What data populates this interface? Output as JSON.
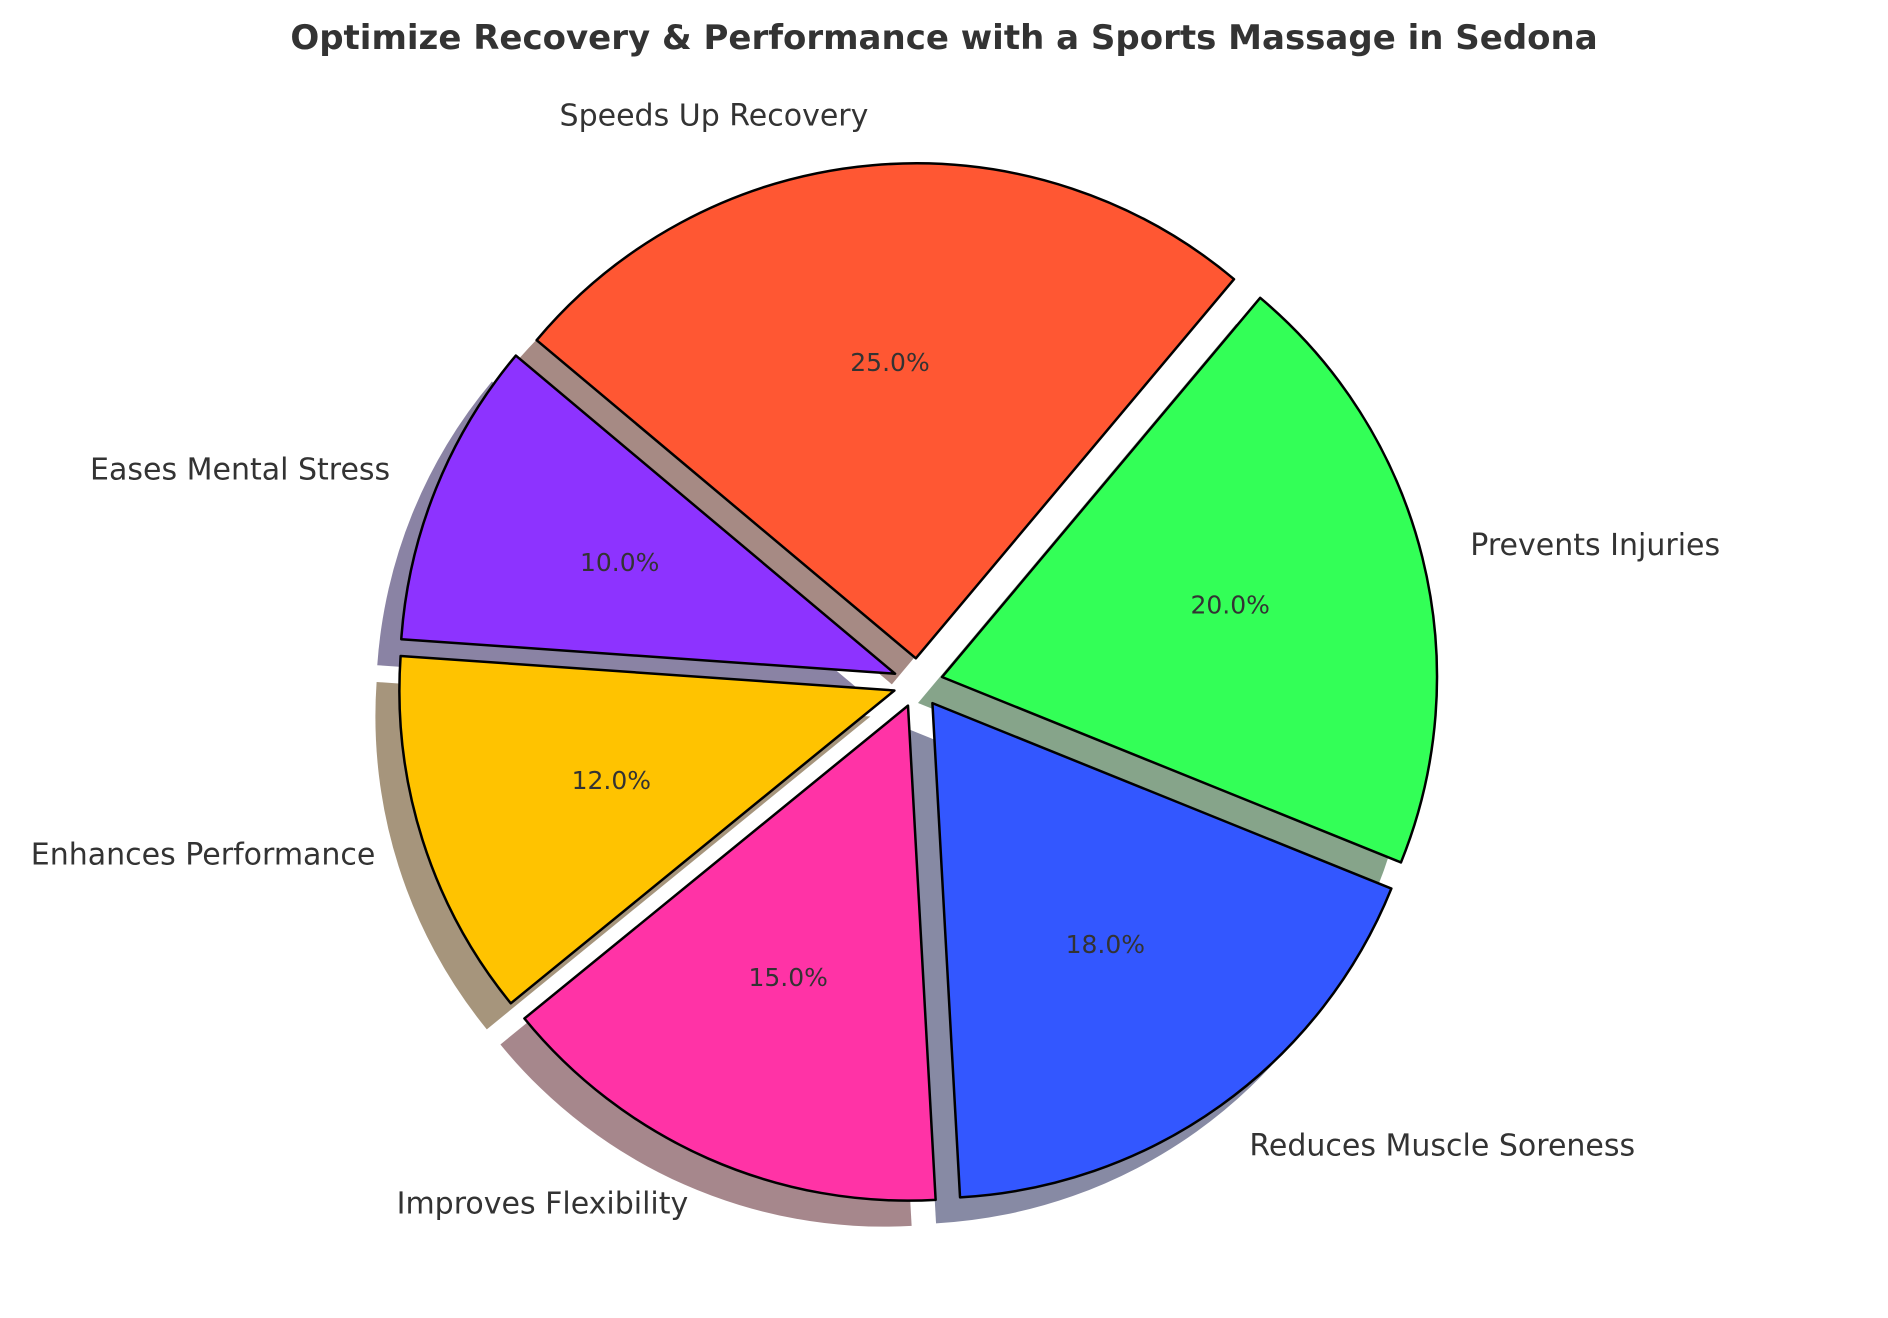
{
  "chart_data": {
    "type": "pie",
    "title": "Optimize Recovery & Performance with a Sports Massage in Sedona",
    "start_angle_deg": 140,
    "direction": "clockwise",
    "shadow": true,
    "slices": [
      {
        "label": "Speeds Up Recovery",
        "value": 25.0,
        "pct_text": "25.0%",
        "color": "#FF5733",
        "shadow_color": "#A68A84"
      },
      {
        "label": "Prevents Injuries",
        "value": 20.0,
        "pct_text": "20.0%",
        "color": "#33FF57",
        "shadow_color": "#86A48A"
      },
      {
        "label": "Reduces Muscle Soreness",
        "value": 18.0,
        "pct_text": "18.0%",
        "color": "#3357FF",
        "shadow_color": "#878AA4"
      },
      {
        "label": "Improves Flexibility",
        "value": 15.0,
        "pct_text": "15.0%",
        "color": "#FF33A6",
        "shadow_color": "#A6878C"
      },
      {
        "label": "Enhances Performance",
        "value": 12.0,
        "pct_text": "12.0%",
        "color": "#FFC300",
        "shadow_color": "#A6957C"
      },
      {
        "label": "Eases Mental Stress",
        "value": 10.0,
        "pct_text": "10.0%",
        "color": "#8D33FF",
        "shadow_color": "#8A83A4"
      }
    ]
  }
}
